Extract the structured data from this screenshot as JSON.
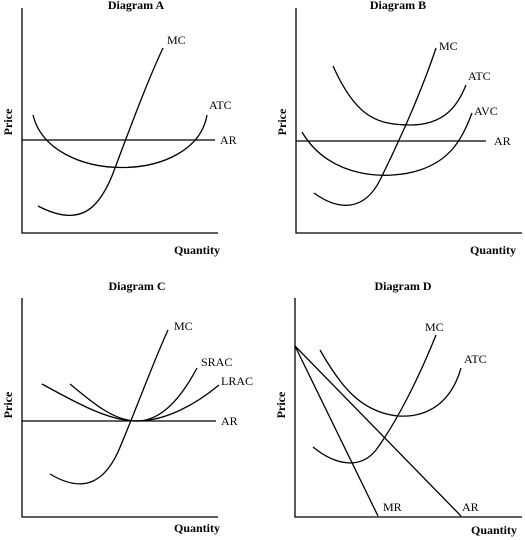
{
  "diagrams": [
    {
      "title": "Diagram A",
      "xlabel": "Quantity",
      "ylabel": "Price",
      "labels": {
        "mc": "MC",
        "atc": "ATC",
        "ar": "AR"
      }
    },
    {
      "title": "Diagram B",
      "xlabel": "Quantity",
      "ylabel": "Price",
      "labels": {
        "mc": "MC",
        "atc": "ATC",
        "avc": "AVC",
        "ar": "AR"
      }
    },
    {
      "title": "Diagram C",
      "xlabel": "Quantity",
      "ylabel": "Price",
      "labels": {
        "mc": "MC",
        "srac": "SRAC",
        "lrac": "LRAC",
        "ar": "AR"
      }
    },
    {
      "title": "Diagram D",
      "xlabel": "Quantity",
      "ylabel": "Price",
      "labels": {
        "mc": "MC",
        "atc": "ATC",
        "mr": "MR",
        "ar": "AR"
      }
    }
  ]
}
